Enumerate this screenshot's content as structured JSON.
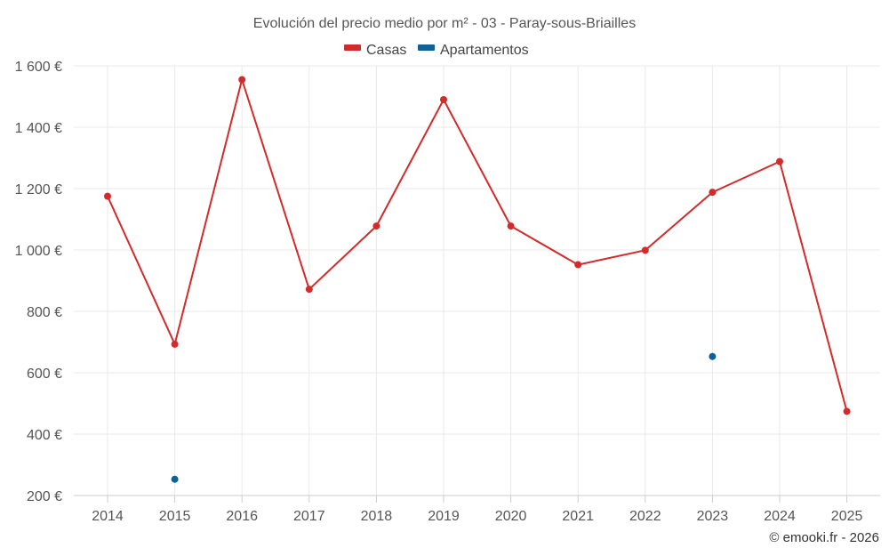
{
  "chart_data": {
    "type": "line",
    "title": "Evolución del precio medio por m² - 03 - Paray-sous-Briailles",
    "categories": [
      "2014",
      "2015",
      "2016",
      "2017",
      "2018",
      "2019",
      "2020",
      "2021",
      "2022",
      "2023",
      "2024",
      "2025"
    ],
    "series": [
      {
        "name": "Casas",
        "color": "#d32a2a",
        "mode": "line+markers",
        "values": [
          1175,
          693,
          1555,
          872,
          1078,
          1490,
          1078,
          952,
          999,
          1188,
          1288,
          474
        ]
      },
      {
        "name": "Apartamentos",
        "color": "#0b6399",
        "mode": "markers",
        "values": [
          null,
          253,
          null,
          null,
          null,
          null,
          null,
          null,
          null,
          653,
          null,
          null
        ]
      }
    ],
    "y_ticks": [
      200,
      400,
      600,
      800,
      1000,
      1200,
      1400,
      1600
    ],
    "y_tick_labels": [
      "200 €",
      "400 €",
      "600 €",
      "800 €",
      "1 000 €",
      "1 200 €",
      "1 400 €",
      "1 600 €"
    ],
    "ylim": [
      200,
      1600
    ],
    "grid": true,
    "legend_position": "top-center"
  },
  "credit": "© emooki.fr - 2026"
}
